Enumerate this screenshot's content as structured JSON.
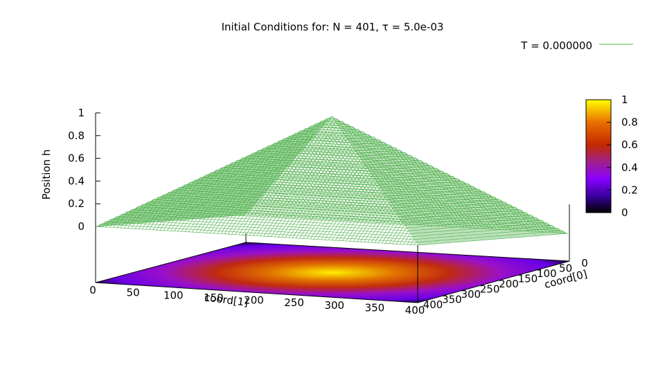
{
  "chart_data": {
    "type": "surface",
    "title": "Initial Conditions for: N = 401, τ = 5.0e-03",
    "legend": {
      "label": "T = 0.000000",
      "color": "#4daf4a",
      "placement": "top-right"
    },
    "zlabel": "Position h",
    "xlabel": "coord[1]",
    "ylabel": "coord[0]",
    "x_ticks": [
      "0",
      "50",
      "100",
      "150",
      "200",
      "250",
      "300",
      "350",
      "400"
    ],
    "y_ticks": [
      "0",
      "50",
      "100",
      "150",
      "200",
      "250",
      "300",
      "350",
      "400"
    ],
    "z_ticks": [
      "0",
      "0.2",
      "0.4",
      "0.6",
      "0.8",
      "1"
    ],
    "colorbar_ticks": [
      "0",
      "0.2",
      "0.4",
      "0.6",
      "0.8",
      "1"
    ],
    "xlim": [
      0,
      400
    ],
    "ylim": [
      0,
      400
    ],
    "zlim": [
      0,
      1
    ],
    "surface": {
      "shape": "pyramid",
      "peak": {
        "x": 200,
        "y": 200,
        "z": 1
      },
      "edge_value": 0,
      "grid_points": 401
    },
    "colormap": "gnuplot-pm3d (black-purple-red-yellow)",
    "colors": {
      "surface": "#4daf4a"
    }
  }
}
